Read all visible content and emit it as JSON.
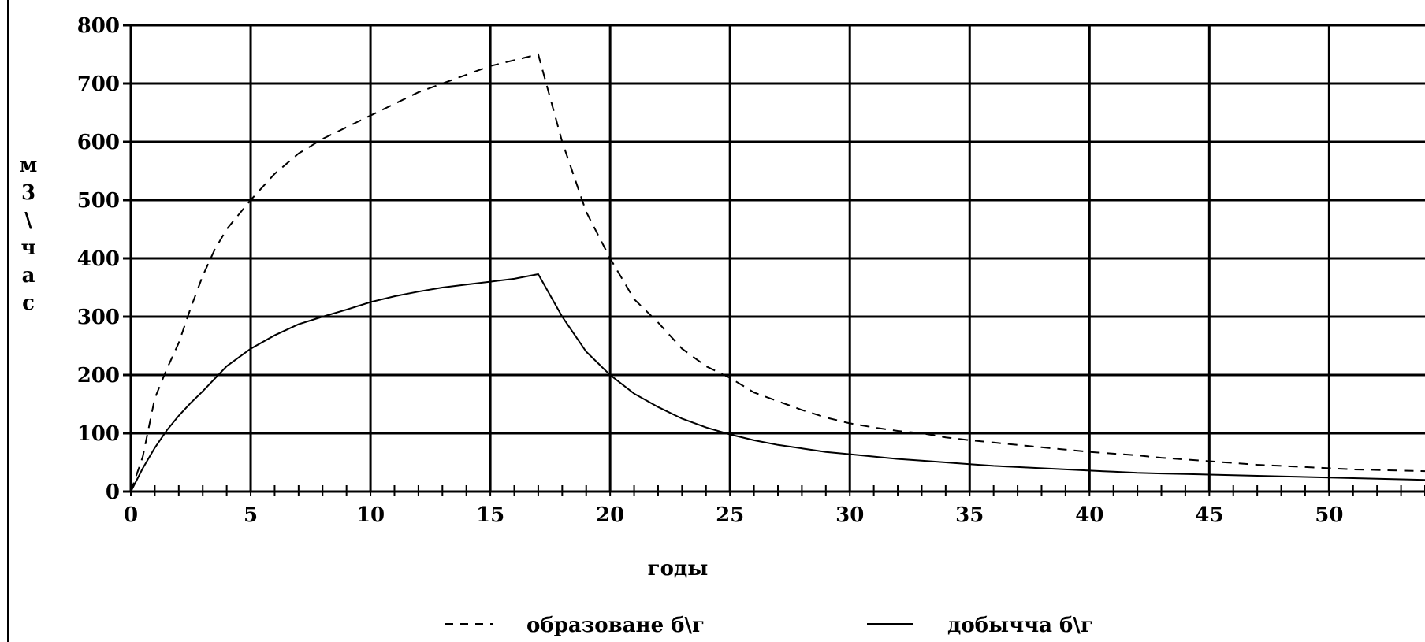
{
  "chart_data": {
    "type": "line",
    "title": "",
    "xlabel": "годы",
    "ylabel": "м3\\час",
    "ylabel_chars": [
      "м",
      "3",
      "\\",
      "ч",
      "а",
      "с"
    ],
    "xlim": [
      0,
      54
    ],
    "ylim": [
      0,
      800
    ],
    "x_ticks": [
      0,
      5,
      10,
      15,
      20,
      25,
      30,
      35,
      40,
      45,
      50
    ],
    "y_ticks": [
      0,
      100,
      200,
      300,
      400,
      500,
      600,
      700,
      800
    ],
    "grid": true,
    "legend_position": "bottom",
    "series": [
      {
        "name": "образоване б\\г",
        "style": "dashed",
        "color": "#000000",
        "x": [
          0,
          0.5,
          1,
          1.5,
          2,
          2.5,
          3,
          3.5,
          4,
          5,
          6,
          7,
          8,
          9,
          10,
          11,
          12,
          13,
          14,
          15,
          16,
          17,
          18,
          19,
          20,
          21,
          22,
          23,
          24,
          25,
          26,
          27,
          28,
          29,
          30,
          31,
          32,
          33,
          34,
          35,
          36,
          37,
          38,
          39,
          40,
          41,
          42,
          43,
          44,
          45,
          46,
          47,
          48,
          49,
          50,
          51,
          52,
          53,
          54
        ],
        "y": [
          0,
          60,
          160,
          210,
          255,
          315,
          370,
          415,
          450,
          500,
          545,
          580,
          605,
          625,
          645,
          665,
          685,
          700,
          715,
          730,
          740,
          750,
          600,
          480,
          400,
          330,
          290,
          245,
          215,
          195,
          170,
          155,
          140,
          127,
          117,
          110,
          104,
          100,
          93,
          88,
          84,
          80,
          76,
          72,
          68,
          65,
          62,
          58,
          55,
          52,
          49,
          46,
          44,
          42,
          40,
          38,
          37,
          36,
          35
        ]
      },
      {
        "name": "добычча б\\г",
        "style": "solid",
        "color": "#000000",
        "x": [
          0,
          0.5,
          1,
          1.5,
          2,
          2.5,
          3,
          4,
          5,
          6,
          7,
          8,
          9,
          10,
          11,
          12,
          13,
          14,
          15,
          16,
          17,
          18,
          19,
          20,
          21,
          22,
          23,
          24,
          25,
          26,
          27,
          28,
          29,
          30,
          31,
          32,
          33,
          34,
          35,
          36,
          37,
          38,
          39,
          40,
          41,
          42,
          43,
          44,
          45,
          46,
          47,
          48,
          49,
          50,
          51,
          52,
          53,
          54
        ],
        "y": [
          0,
          40,
          75,
          105,
          130,
          152,
          172,
          215,
          245,
          268,
          287,
          300,
          312,
          325,
          335,
          343,
          350,
          355,
          360,
          365,
          373,
          300,
          240,
          200,
          168,
          145,
          125,
          110,
          98,
          88,
          80,
          74,
          68,
          64,
          60,
          56,
          53,
          50,
          47,
          44,
          42,
          40,
          38,
          36,
          34,
          32,
          31,
          30,
          29,
          28,
          27,
          26,
          25,
          24,
          23,
          22,
          21,
          20
        ]
      }
    ]
  }
}
